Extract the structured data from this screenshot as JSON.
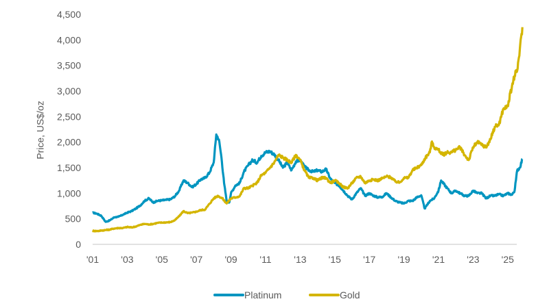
{
  "chart_data": {
    "type": "line",
    "title": "",
    "xlabel": "",
    "ylabel": "Price, US$/oz",
    "ylim": [
      0,
      4500
    ],
    "xlim": [
      2001.0,
      2025.85
    ],
    "yticks": [
      0,
      500,
      1000,
      1500,
      2000,
      2500,
      3000,
      3500,
      4000,
      4500
    ],
    "ytick_labels": [
      "0",
      "500",
      "1,000",
      "1,500",
      "2,000",
      "2,500",
      "3,000",
      "3,500",
      "4,000",
      "4,500"
    ],
    "xticks": [
      2001,
      2003,
      2005,
      2007,
      2009,
      2011,
      2013,
      2015,
      2017,
      2019,
      2021,
      2023,
      2025
    ],
    "xtick_labels": [
      "'01",
      "'03",
      "'05",
      "'07",
      "'09",
      "'11",
      "'13",
      "'15",
      "'17",
      "'19",
      "'21",
      "'23",
      "'25"
    ],
    "grid": false,
    "legend_position": "bottom-center",
    "series": [
      {
        "name": "Platinum",
        "color": "#0095C0",
        "x": [
          2001.0,
          2001.25,
          2001.5,
          2001.75,
          2002.0,
          2002.25,
          2002.5,
          2002.75,
          2003.0,
          2003.25,
          2003.5,
          2003.75,
          2004.0,
          2004.25,
          2004.5,
          2004.75,
          2005.0,
          2005.25,
          2005.5,
          2005.75,
          2006.0,
          2006.25,
          2006.5,
          2006.75,
          2007.0,
          2007.25,
          2007.5,
          2007.75,
          2008.0,
          2008.15,
          2008.3,
          2008.45,
          2008.6,
          2008.75,
          2008.9,
          2009.0,
          2009.25,
          2009.5,
          2009.75,
          2010.0,
          2010.25,
          2010.5,
          2010.75,
          2011.0,
          2011.25,
          2011.5,
          2011.75,
          2012.0,
          2012.25,
          2012.5,
          2012.75,
          2013.0,
          2013.25,
          2013.5,
          2013.75,
          2014.0,
          2014.25,
          2014.5,
          2014.75,
          2015.0,
          2015.25,
          2015.5,
          2015.75,
          2016.0,
          2016.25,
          2016.5,
          2016.75,
          2017.0,
          2017.25,
          2017.5,
          2017.75,
          2018.0,
          2018.25,
          2018.5,
          2018.75,
          2019.0,
          2019.25,
          2019.5,
          2019.75,
          2020.0,
          2020.2,
          2020.3,
          2020.5,
          2020.75,
          2021.0,
          2021.15,
          2021.5,
          2021.75,
          2022.0,
          2022.25,
          2022.5,
          2022.75,
          2023.0,
          2023.25,
          2023.5,
          2023.75,
          2024.0,
          2024.25,
          2024.5,
          2024.75,
          2025.0,
          2025.25,
          2025.4,
          2025.55,
          2025.7,
          2025.85
        ],
        "values": [
          620,
          600,
          560,
          440,
          470,
          530,
          540,
          580,
          620,
          650,
          700,
          760,
          850,
          900,
          820,
          850,
          860,
          870,
          880,
          940,
          1050,
          1250,
          1200,
          1120,
          1180,
          1270,
          1300,
          1400,
          1600,
          2150,
          2050,
          1700,
          1200,
          850,
          820,
          1000,
          1150,
          1200,
          1420,
          1550,
          1650,
          1600,
          1730,
          1800,
          1820,
          1760,
          1650,
          1500,
          1600,
          1450,
          1620,
          1650,
          1520,
          1450,
          1420,
          1450,
          1420,
          1470,
          1280,
          1200,
          1150,
          1050,
          950,
          880,
          1000,
          1100,
          950,
          1000,
          950,
          920,
          930,
          1000,
          920,
          850,
          820,
          800,
          850,
          850,
          920,
          960,
          700,
          750,
          850,
          900,
          1050,
          1250,
          1100,
          1000,
          1050,
          1000,
          950,
          950,
          1050,
          1000,
          1000,
          900,
          950,
          950,
          980,
          950,
          1000,
          970,
          1050,
          1450,
          1500,
          1670
        ]
      },
      {
        "name": "Gold",
        "color": "#D4B500",
        "x": [
          2001.0,
          2001.25,
          2001.5,
          2001.75,
          2002.0,
          2002.25,
          2002.5,
          2002.75,
          2003.0,
          2003.25,
          2003.5,
          2003.75,
          2004.0,
          2004.25,
          2004.5,
          2004.75,
          2005.0,
          2005.25,
          2005.5,
          2005.75,
          2006.0,
          2006.25,
          2006.5,
          2006.75,
          2007.0,
          2007.25,
          2007.5,
          2007.75,
          2008.0,
          2008.25,
          2008.5,
          2008.75,
          2009.0,
          2009.25,
          2009.5,
          2009.75,
          2010.0,
          2010.25,
          2010.5,
          2010.75,
          2011.0,
          2011.25,
          2011.5,
          2011.75,
          2012.0,
          2012.25,
          2012.5,
          2012.75,
          2013.0,
          2013.25,
          2013.5,
          2013.75,
          2014.0,
          2014.25,
          2014.5,
          2014.75,
          2015.0,
          2015.25,
          2015.5,
          2015.75,
          2016.0,
          2016.25,
          2016.5,
          2016.75,
          2017.0,
          2017.25,
          2017.5,
          2017.75,
          2018.0,
          2018.25,
          2018.5,
          2018.75,
          2019.0,
          2019.25,
          2019.5,
          2019.75,
          2020.0,
          2020.25,
          2020.5,
          2020.6,
          2020.75,
          2021.0,
          2021.25,
          2021.5,
          2021.75,
          2022.0,
          2022.25,
          2022.5,
          2022.75,
          2023.0,
          2023.25,
          2023.5,
          2023.75,
          2024.0,
          2024.25,
          2024.5,
          2024.75,
          2025.0,
          2025.25,
          2025.4,
          2025.55,
          2025.7,
          2025.85
        ],
        "values": [
          265,
          260,
          270,
          280,
          290,
          310,
          320,
          320,
          340,
          330,
          350,
          380,
          400,
          390,
          400,
          420,
          425,
          430,
          435,
          470,
          550,
          650,
          610,
          620,
          640,
          670,
          680,
          790,
          900,
          950,
          900,
          800,
          900,
          920,
          940,
          1100,
          1100,
          1150,
          1200,
          1350,
          1400,
          1500,
          1600,
          1750,
          1700,
          1650,
          1600,
          1750,
          1650,
          1450,
          1300,
          1300,
          1250,
          1300,
          1300,
          1200,
          1250,
          1200,
          1120,
          1100,
          1200,
          1300,
          1330,
          1200,
          1250,
          1270,
          1250,
          1290,
          1330,
          1310,
          1230,
          1210,
          1300,
          1300,
          1450,
          1500,
          1550,
          1700,
          1800,
          2000,
          1900,
          1850,
          1750,
          1800,
          1800,
          1850,
          1900,
          1750,
          1650,
          1900,
          2000,
          1950,
          1900,
          2050,
          2300,
          2350,
          2650,
          2700,
          3100,
          3300,
          3400,
          3800,
          4250
        ]
      }
    ]
  }
}
